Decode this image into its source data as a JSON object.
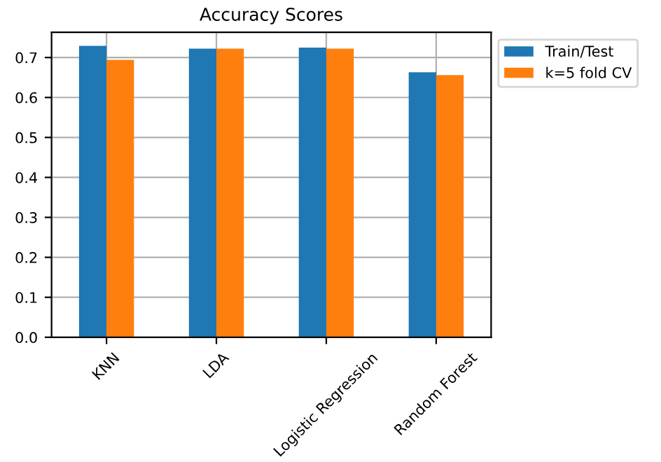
{
  "chart_data": {
    "type": "bar",
    "title": "Accuracy Scores",
    "categories": [
      "KNN",
      "LDA",
      "Logistic Regression",
      "Random Forest"
    ],
    "series": [
      {
        "name": "Train/Test",
        "color": "#1f77b4",
        "values": [
          0.729,
          0.722,
          0.725,
          0.663
        ]
      },
      {
        "name": "k=5 fold CV",
        "color": "#ff7f0e",
        "values": [
          0.694,
          0.722,
          0.722,
          0.656
        ]
      }
    ],
    "ylim": [
      0,
      0.763
    ],
    "yticks": [
      {
        "value": 0,
        "label": "0.0"
      },
      0.1,
      0.2,
      0.3,
      0.4,
      0.5,
      0.6,
      0.7
    ],
    "grid": true,
    "legend": "top right"
  }
}
